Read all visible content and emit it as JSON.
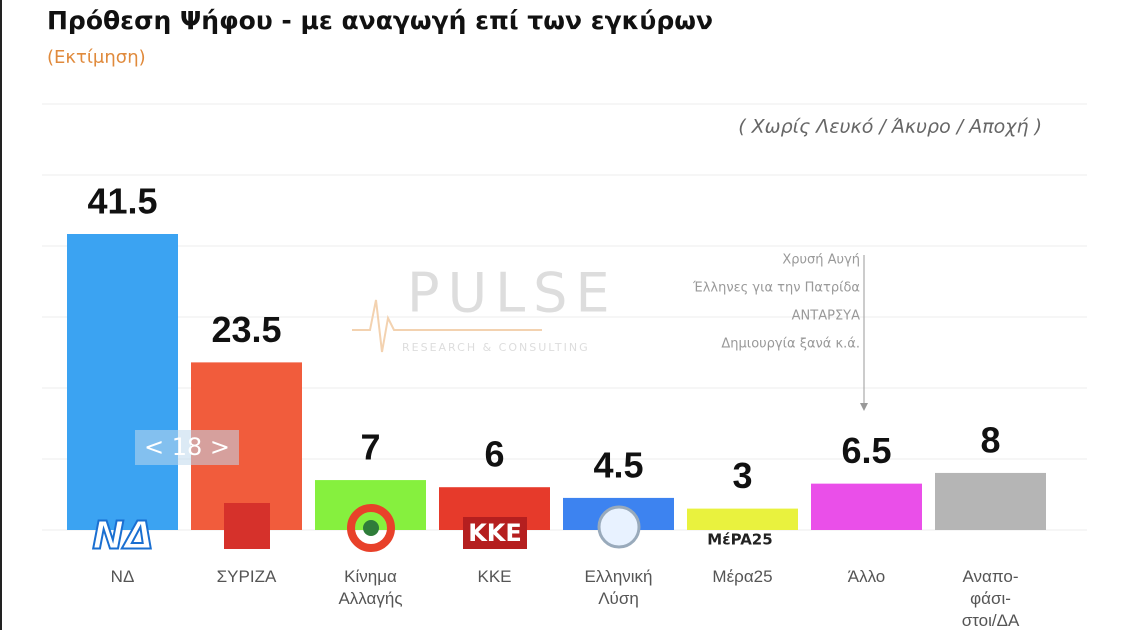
{
  "chart_data": {
    "type": "bar",
    "title": "Πρόθεση Ψήφου - με αναγωγή επί των εγκύρων",
    "subtitle": "(Εκτίμηση)",
    "annotation": "( Χωρίς Λευκό / Άκυρο / Αποχή )",
    "other_note": [
      "Χρυσή Αυγή",
      "Έλληνες για την Πατρίδα",
      "ΑΝΤΑΡΣΥΑ",
      "Δημιουργία ξανά  κ.ά."
    ],
    "categories": [
      "ΝΔ",
      "ΣΥΡΙΖΑ",
      "Κίνημα\nΑλλαγής",
      "ΚΚΕ",
      "Ελληνική\nΛύση",
      "Μέρα25",
      "Άλλο",
      "Αναπο-\nφάσι-\nστοι/ΔΑ"
    ],
    "values": [
      41.5,
      23.5,
      7,
      6,
      4.5,
      3,
      6.5,
      8
    ],
    "colors": [
      "#3ba3f2",
      "#f15c3c",
      "#86f03e",
      "#e63a2b",
      "#3d83f0",
      "#e9f23e",
      "#ea4fe9",
      "#b5b5b5"
    ],
    "logos": {
      "nd": "ΝΔ",
      "kke": "ΚΚΕ",
      "mera25": "MέPA25"
    },
    "watermark": {
      "name": "PULSE",
      "tagline": "RESEARCH & CONSULTING"
    },
    "overlay": "< 18 >"
  }
}
